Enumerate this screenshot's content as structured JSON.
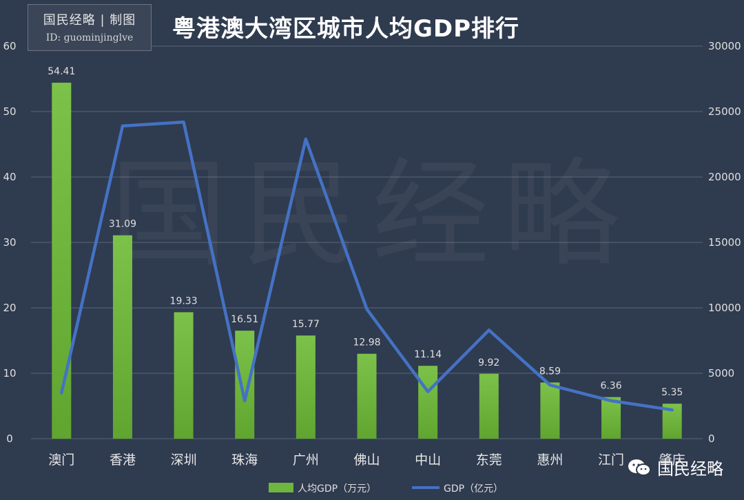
{
  "badge": {
    "line1": "国民经略 | 制图",
    "line2": "ID: guominjinglve"
  },
  "title": "粤港澳大湾区城市人均GDP排行",
  "watermark": "国民经略",
  "brand": {
    "text": "国民经略",
    "icon": "wechat-icon"
  },
  "colors": {
    "background": "#2f3b4f",
    "bar": "#6fb63f",
    "line": "#4472c4",
    "text": "#e0e0e0"
  },
  "chart_data": {
    "type": "bar",
    "categories": [
      "澳门",
      "香港",
      "深圳",
      "珠海",
      "广州",
      "佛山",
      "中山",
      "东莞",
      "惠州",
      "江门",
      "肇庆"
    ],
    "series": [
      {
        "name": "人均GDP（万元）",
        "type": "bar",
        "axis": "left",
        "values": [
          54.41,
          31.09,
          19.33,
          16.51,
          15.77,
          12.98,
          11.14,
          9.92,
          8.59,
          6.36,
          5.35
        ],
        "labels": [
          "54.41",
          "31.09",
          "19.33",
          "16.51",
          "15.77",
          "12.98",
          "11.14",
          "9.92",
          "8.59",
          "6.36",
          "5.35"
        ]
      },
      {
        "name": "GDP（亿元）",
        "type": "line",
        "axis": "right",
        "values": [
          3500,
          23900,
          24200,
          2900,
          22900,
          9900,
          3600,
          8300,
          4100,
          2900,
          2200
        ]
      }
    ],
    "y_left": {
      "range": [
        0,
        60
      ],
      "ticks": [
        "0",
        "10",
        "20",
        "30",
        "40",
        "50",
        "60"
      ]
    },
    "y_right": {
      "range": [
        0,
        30000
      ],
      "ticks": [
        "0",
        "5000",
        "10000",
        "15000",
        "20000",
        "25000",
        "30000"
      ]
    },
    "grid": true,
    "legend": "bottom"
  }
}
